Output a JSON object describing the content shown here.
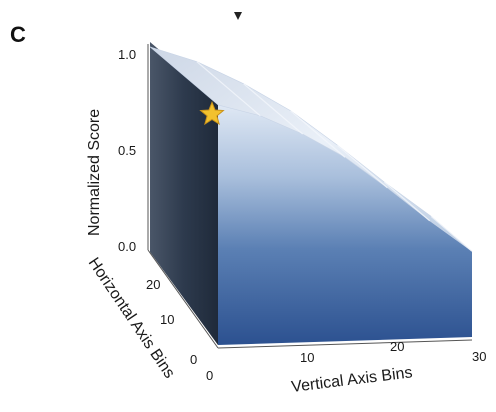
{
  "panel_label": "C",
  "chart_data": {
    "type": "surface3d",
    "title": "",
    "z_axis": {
      "label": "Normalized Score",
      "range": [
        0.0,
        1.0
      ],
      "ticks": [
        "1.0",
        "0.5",
        "0.0"
      ]
    },
    "horizontal_axis": {
      "label": "Horizontal Axis Bins",
      "range": [
        0,
        30
      ],
      "ticks": [
        "20",
        "10",
        "0"
      ]
    },
    "vertical_axis": {
      "label": "Vertical Axis Bins",
      "range": [
        0,
        30
      ],
      "ticks": [
        "0",
        "10",
        "20",
        "30"
      ]
    },
    "surface_profile": {
      "x": [
        0,
        5,
        10,
        15,
        20,
        25,
        30
      ],
      "z": [
        0.98,
        0.93,
        0.85,
        0.75,
        0.62,
        0.48,
        0.35
      ]
    },
    "marker": {
      "shape": "star",
      "horizontal_bin": 0,
      "vertical_bin": 0,
      "z": 0.95
    },
    "colors": {
      "surface_top": "#dfe7f3",
      "surface_bottom": "#2e5590",
      "wall_dark": "#263548",
      "marker": "#f2c12e"
    }
  }
}
